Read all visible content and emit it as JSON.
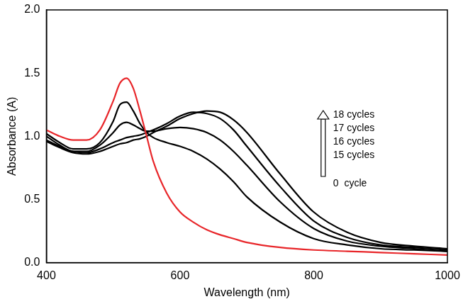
{
  "chart_data": {
    "type": "line",
    "x_label": "Wavelength (nm)",
    "y_label": "Absorbance (A)",
    "x": [
      400,
      420,
      440,
      460,
      480,
      500,
      510,
      520,
      530,
      540,
      550,
      560,
      580,
      600,
      620,
      640,
      660,
      680,
      700,
      750,
      800,
      850,
      900,
      950,
      1000
    ],
    "series": [
      {
        "name": "0  cycle",
        "color": "#e8262a",
        "values": [
          1.05,
          1.0,
          0.97,
          0.97,
          1.05,
          1.28,
          1.42,
          1.46,
          1.38,
          1.2,
          1.0,
          0.8,
          0.55,
          0.4,
          0.32,
          0.26,
          0.22,
          0.19,
          0.16,
          0.12,
          0.1,
          0.09,
          0.08,
          0.07,
          0.06
        ]
      },
      {
        "name": "15 cycles",
        "color": "#000000",
        "values": [
          1.02,
          0.95,
          0.9,
          0.9,
          0.95,
          1.12,
          1.25,
          1.27,
          1.2,
          1.1,
          1.03,
          0.99,
          0.95,
          0.92,
          0.88,
          0.82,
          0.74,
          0.64,
          0.52,
          0.32,
          0.19,
          0.14,
          0.11,
          0.1,
          0.09
        ]
      },
      {
        "name": "16 cycles",
        "color": "#000000",
        "values": [
          1.0,
          0.93,
          0.88,
          0.88,
          0.93,
          1.03,
          1.09,
          1.11,
          1.09,
          1.06,
          1.04,
          1.04,
          1.06,
          1.07,
          1.06,
          1.03,
          0.97,
          0.88,
          0.77,
          0.48,
          0.27,
          0.17,
          0.13,
          0.11,
          0.09
        ]
      },
      {
        "name": "17 cycles",
        "color": "#000000",
        "values": [
          0.97,
          0.92,
          0.88,
          0.87,
          0.9,
          0.95,
          0.97,
          0.99,
          1.0,
          1.01,
          1.03,
          1.05,
          1.1,
          1.16,
          1.19,
          1.18,
          1.14,
          1.05,
          0.92,
          0.6,
          0.33,
          0.2,
          0.14,
          0.12,
          0.1
        ]
      },
      {
        "name": "18 cycles",
        "color": "#000000",
        "values": [
          0.96,
          0.91,
          0.87,
          0.86,
          0.88,
          0.92,
          0.94,
          0.95,
          0.97,
          0.98,
          1.0,
          1.03,
          1.08,
          1.14,
          1.18,
          1.2,
          1.19,
          1.13,
          1.03,
          0.7,
          0.4,
          0.24,
          0.16,
          0.13,
          0.11
        ]
      }
    ],
    "xlim": [
      400,
      1000
    ],
    "xticks": [
      400,
      600,
      800,
      1000
    ],
    "ylim": [
      0,
      2.0
    ],
    "yticks": [
      {
        "value": 0,
        "label": "0.0"
      },
      0.5,
      {
        "value": 1.0,
        "label": "1.0"
      },
      1.5,
      {
        "value": 2.0,
        "label": "2.0"
      }
    ],
    "grid": false
  }
}
